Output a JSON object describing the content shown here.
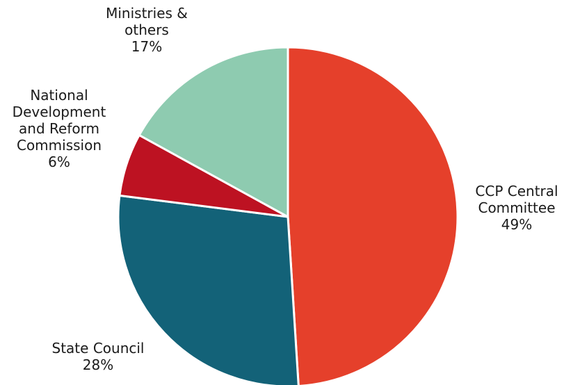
{
  "chart_data": {
    "type": "pie",
    "title": "",
    "slices": [
      {
        "name": "CCP Central Committee",
        "label_lines": [
          "CCP Central",
          "Committee"
        ],
        "value": 49,
        "value_label": "49%",
        "color": "#e5402b"
      },
      {
        "name": "State Council",
        "label_lines": [
          "State Council"
        ],
        "value": 28,
        "value_label": "28%",
        "color": "#136278"
      },
      {
        "name": "National Development and Reform Commission",
        "label_lines": [
          "National",
          "Development",
          "and Reform",
          "Commission"
        ],
        "value": 6,
        "value_label": "6%",
        "color": "#bd1222"
      },
      {
        "name": "Ministries & others",
        "label_lines": [
          "Ministries &",
          "others"
        ],
        "value": 17,
        "value_label": "17%",
        "color": "#8ecbb0"
      }
    ],
    "start_angle_deg": 0,
    "direction": "clockwise",
    "legend": "none"
  }
}
